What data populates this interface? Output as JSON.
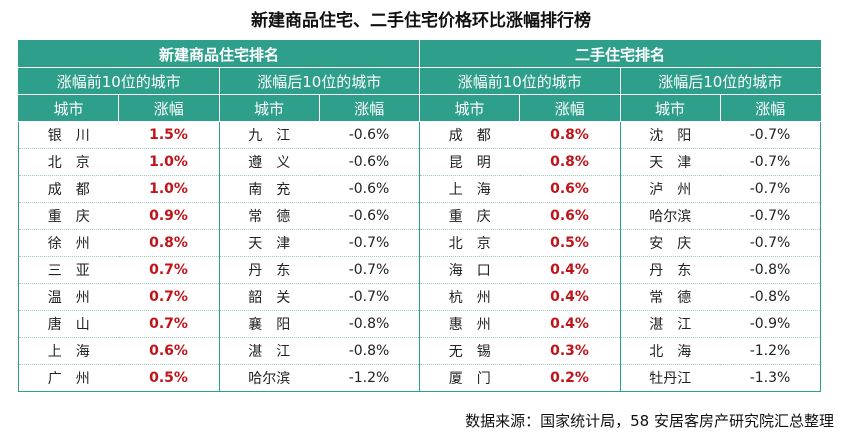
{
  "title": "新建商品住宅、二手住宅价格环比涨幅排行榜",
  "sections": {
    "new": "新建商品住宅排名",
    "second": "二手住宅排名"
  },
  "groups": {
    "new_top": "涨幅前10位的城市",
    "new_bottom": "涨幅后10位的城市",
    "second_top": "涨幅前10位的城市",
    "second_bottom": "涨幅后10位的城市"
  },
  "col_headers": {
    "city": "城市",
    "change": "涨幅"
  },
  "rows": [
    {
      "new_top_city": "银　川",
      "new_top_val": "1.5%",
      "new_bottom_city": "九　江",
      "new_bottom_val": "-0.6%",
      "second_top_city": "成　都",
      "second_top_val": "0.8%",
      "second_bottom_city": "沈　阳",
      "second_bottom_val": "-0.7%"
    },
    {
      "new_top_city": "北　京",
      "new_top_val": "1.0%",
      "new_bottom_city": "遵　义",
      "new_bottom_val": "-0.6%",
      "second_top_city": "昆　明",
      "second_top_val": "0.8%",
      "second_bottom_city": "天　津",
      "second_bottom_val": "-0.7%"
    },
    {
      "new_top_city": "成　都",
      "new_top_val": "1.0%",
      "new_bottom_city": "南　充",
      "new_bottom_val": "-0.6%",
      "second_top_city": "上　海",
      "second_top_val": "0.6%",
      "second_bottom_city": "泸　州",
      "second_bottom_val": "-0.7%"
    },
    {
      "new_top_city": "重　庆",
      "new_top_val": "0.9%",
      "new_bottom_city": "常　德",
      "new_bottom_val": "-0.6%",
      "second_top_city": "重　庆",
      "second_top_val": "0.6%",
      "second_bottom_city": "哈尔滨",
      "second_bottom_val": "-0.7%"
    },
    {
      "new_top_city": "徐　州",
      "new_top_val": "0.8%",
      "new_bottom_city": "天　津",
      "new_bottom_val": "-0.7%",
      "second_top_city": "北　京",
      "second_top_val": "0.5%",
      "second_bottom_city": "安　庆",
      "second_bottom_val": "-0.7%"
    },
    {
      "new_top_city": "三　亚",
      "new_top_val": "0.7%",
      "new_bottom_city": "丹　东",
      "new_bottom_val": "-0.7%",
      "second_top_city": "海　口",
      "second_top_val": "0.4%",
      "second_bottom_city": "丹　东",
      "second_bottom_val": "-0.8%"
    },
    {
      "new_top_city": "温　州",
      "new_top_val": "0.7%",
      "new_bottom_city": "韶　关",
      "new_bottom_val": "-0.7%",
      "second_top_city": "杭　州",
      "second_top_val": "0.4%",
      "second_bottom_city": "常　德",
      "second_bottom_val": "-0.8%"
    },
    {
      "new_top_city": "唐　山",
      "new_top_val": "0.7%",
      "new_bottom_city": "襄　阳",
      "new_bottom_val": "-0.8%",
      "second_top_city": "惠　州",
      "second_top_val": "0.4%",
      "second_bottom_city": "湛　江",
      "second_bottom_val": "-0.9%"
    },
    {
      "new_top_city": "上　海",
      "new_top_val": "0.6%",
      "new_bottom_city": "湛　江",
      "new_bottom_val": "-0.8%",
      "second_top_city": "无　锡",
      "second_top_val": "0.3%",
      "second_bottom_city": "北　海",
      "second_bottom_val": "-1.2%"
    },
    {
      "new_top_city": "广　州",
      "new_top_val": "0.5%",
      "new_bottom_city": "哈尔滨",
      "new_bottom_val": "-1.2%",
      "second_top_city": "厦　门",
      "second_top_val": "0.2%",
      "second_bottom_city": "牡丹江",
      "second_bottom_val": "-1.3%"
    }
  ],
  "source": "数据来源：国家统计局，58 安居客房产研究院汇总整理",
  "colors": {
    "header_teal": "#2e9f8b",
    "positive_red": "#c0141a"
  }
}
